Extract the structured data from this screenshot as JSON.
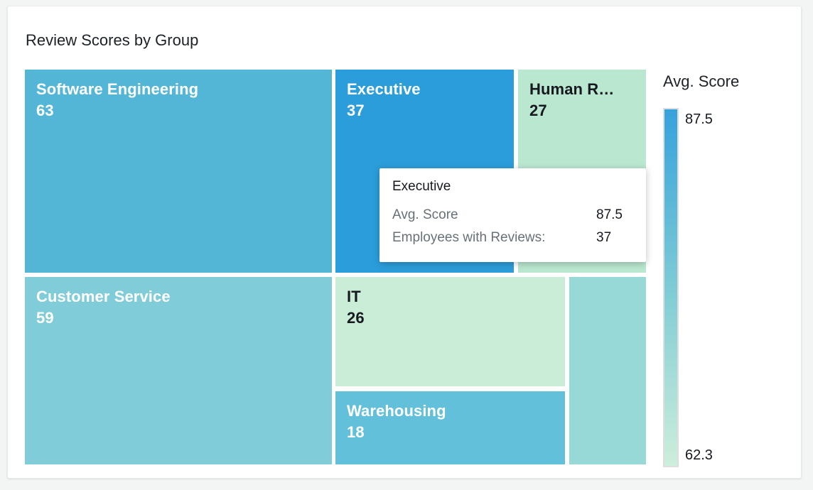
{
  "title": "Review Scores by Group",
  "treemap": {
    "blocks": [
      {
        "label": "Software Engineering",
        "value": "63",
        "color": "#53b6d7"
      },
      {
        "label": "Executive",
        "value": "37",
        "color": "#2b9dda"
      },
      {
        "label": "Human R…",
        "value": "27",
        "color": "#bae7d0"
      },
      {
        "label": "Customer Service",
        "value": "59",
        "color": "#80ccd9"
      },
      {
        "label": "IT",
        "value": "26",
        "color": "#c9edd6"
      },
      {
        "label": "Warehousing",
        "value": "18",
        "color": "#63c0da"
      },
      {
        "label": "",
        "value": "",
        "color": "#97d9d6"
      }
    ]
  },
  "legend": {
    "title": "Avg. Score",
    "max_label": "87.5",
    "min_label": "62.3",
    "gradient_stops": [
      "#36a2dc",
      "#7ecbd5",
      "#cdeedb"
    ]
  },
  "tooltip": {
    "title": "Executive",
    "rows": [
      {
        "label": "Avg. Score",
        "value": "87.5"
      },
      {
        "label": "Employees with Reviews:",
        "value": "37"
      }
    ]
  },
  "chart_data": {
    "type": "treemap",
    "title": "Review Scores by Group",
    "size_metric": "Employees with Reviews",
    "color_metric": "Avg. Score",
    "color_scale": {
      "min": 62.3,
      "max": 87.5,
      "min_color": "#cdeedb",
      "max_color": "#36a2dc"
    },
    "legend_position": "right",
    "groups": [
      {
        "label": "Software Engineering",
        "employees_with_reviews": 63,
        "avg_score": 80,
        "avg_score_is_estimate": true
      },
      {
        "label": "Executive",
        "employees_with_reviews": 37,
        "avg_score": 87.5,
        "avg_score_is_estimate": false
      },
      {
        "label": "Human R…",
        "employees_with_reviews": 27,
        "avg_score": 65,
        "avg_score_is_estimate": true
      },
      {
        "label": "Customer Service",
        "employees_with_reviews": 59,
        "avg_score": 74,
        "avg_score_is_estimate": true
      },
      {
        "label": "IT",
        "employees_with_reviews": 26,
        "avg_score": 62.5,
        "avg_score_is_estimate": true
      },
      {
        "label": "Warehousing",
        "employees_with_reviews": 18,
        "avg_score": 79,
        "avg_score_is_estimate": true
      },
      {
        "label": "",
        "employees_with_reviews": null,
        "avg_score": 71,
        "avg_score_is_estimate": true
      }
    ],
    "tooltip_shown": {
      "group": "Executive",
      "avg_score": 87.5,
      "employees_with_reviews": 37
    }
  }
}
